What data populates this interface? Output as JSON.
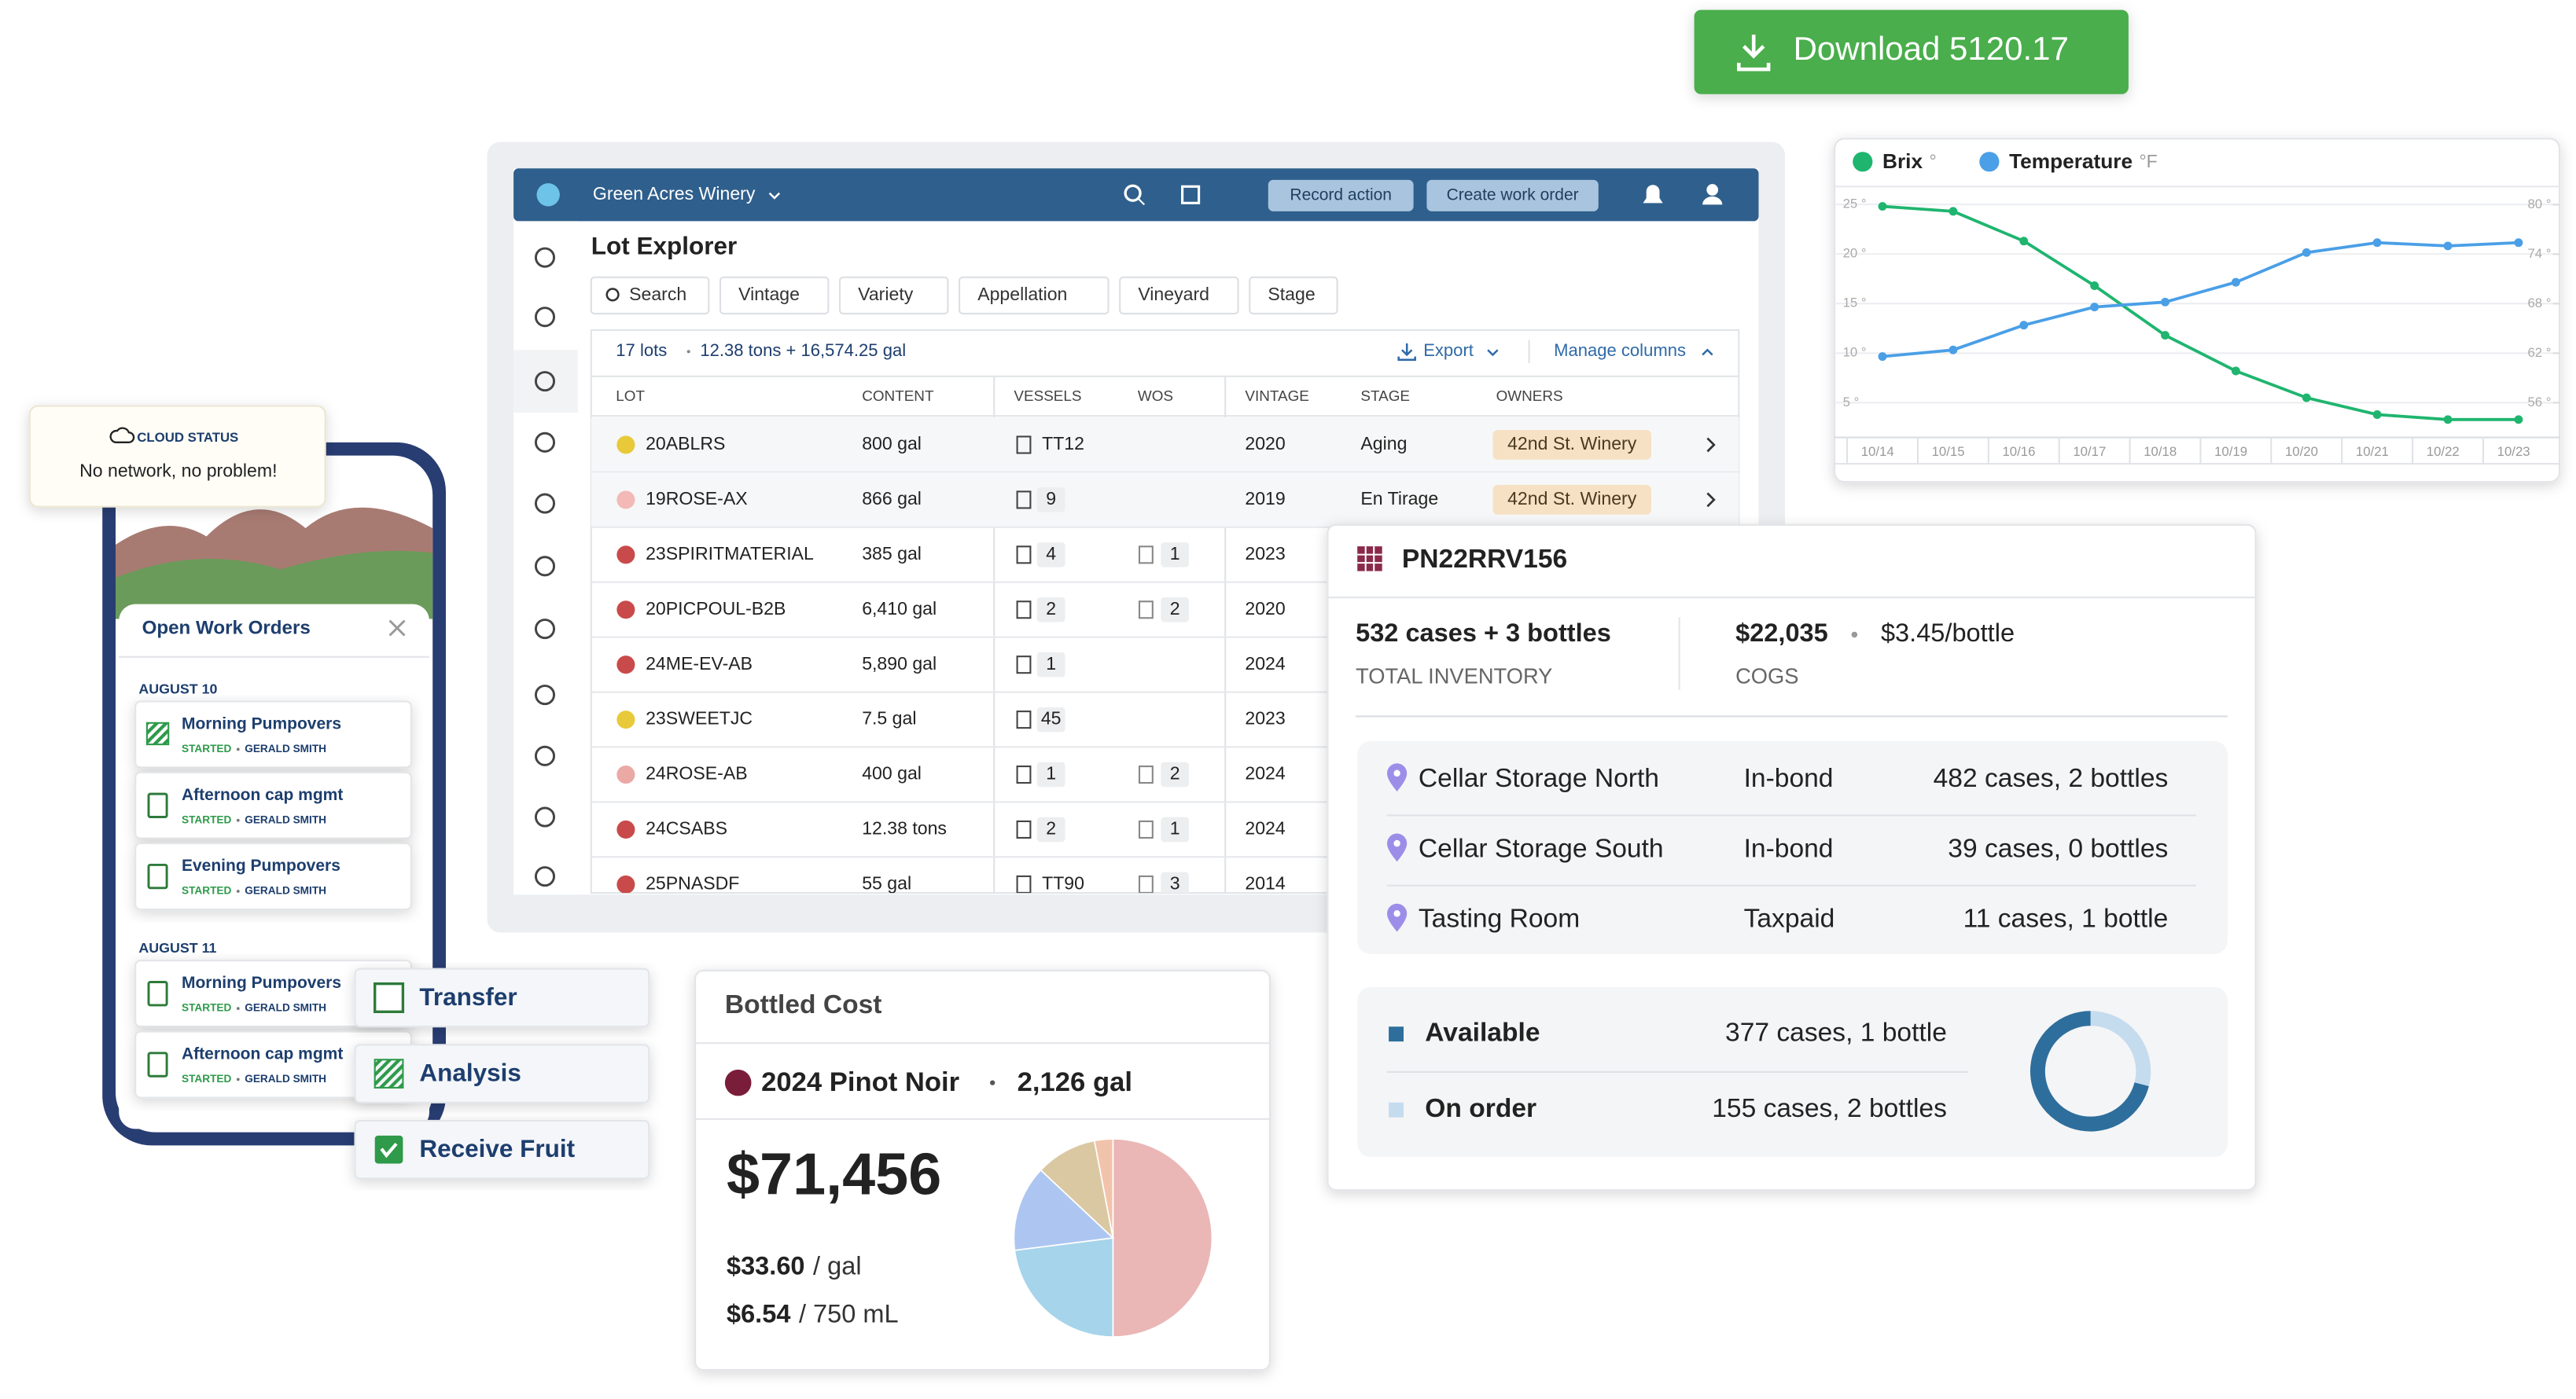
{
  "download_button": "Download 5120.17",
  "app": {
    "winery": "Green Acres Winery",
    "actions": [
      "Record action",
      "Create work order"
    ],
    "title": "Lot Explorer",
    "filters": [
      "Search",
      "Vintage",
      "Variety",
      "Appellation",
      "Vineyard",
      "Stage"
    ],
    "lot_count": "17 lots",
    "totals": "12.38 tons + 16,574.25 gal",
    "export": "Export",
    "manage_columns": "Manage columns",
    "columns": [
      "LOT",
      "CONTENT",
      "VESSELS",
      "WOS",
      "VINTAGE",
      "STAGE",
      "OWNERS"
    ],
    "rows": [
      {
        "lot": "20ABLRS",
        "color": "#e8c93a",
        "content": "800 gal",
        "vessel": "TT12",
        "wos": null,
        "vintage": "2020",
        "stage": "Aging",
        "owner": "42nd St. Winery"
      },
      {
        "lot": "19ROSE-AX",
        "color": "#f2b9b6",
        "content": "866 gal",
        "vessel": "9",
        "wos": null,
        "vintage": "2019",
        "stage": "En Tirage",
        "owner": "42nd St. Winery"
      },
      {
        "lot": "23SPIRITMATERIAL",
        "color": "#c94a4a",
        "content": "385 gal",
        "vessel": "4",
        "wos": "1",
        "vintage": "2023",
        "stage": null,
        "owner": null
      },
      {
        "lot": "20PICPOUL-B2B",
        "color": "#c94a4a",
        "content": "6,410 gal",
        "vessel": "2",
        "wos": "2",
        "vintage": "2020",
        "stage": null,
        "owner": null
      },
      {
        "lot": "24ME-EV-AB",
        "color": "#c94a4a",
        "content": "5,890 gal",
        "vessel": "1",
        "wos": null,
        "vintage": "2024",
        "stage": null,
        "owner": null
      },
      {
        "lot": "23SWEETJC",
        "color": "#e8c93a",
        "content": "7.5 gal",
        "vessel": "45",
        "wos": null,
        "vintage": "2023",
        "stage": null,
        "owner": null
      },
      {
        "lot": "24ROSE-AB",
        "color": "#eba9a6",
        "content": "400 gal",
        "vessel": "1",
        "wos": "2",
        "vintage": "2024",
        "stage": null,
        "owner": null
      },
      {
        "lot": "24CSABS",
        "color": "#c94a4a",
        "content": "12.38 tons",
        "vessel": "2",
        "wos": "1",
        "vintage": "2024",
        "stage": null,
        "owner": null
      },
      {
        "lot": "25PNASDF",
        "color": "#c94a4a",
        "content": "55 gal",
        "vessel": "TT90",
        "wos": "3",
        "vintage": "2014",
        "stage": null,
        "owner": null
      }
    ]
  },
  "inventory": {
    "lot": "PN22RRV156",
    "total": "532 cases + 3 bottles",
    "total_label": "TOTAL INVENTORY",
    "cogs": "$22,035",
    "per_bottle": "$3.45/bottle",
    "cogs_label": "COGS",
    "locations": [
      {
        "name": "Cellar Storage North",
        "tax": "In-bond",
        "qty": "482 cases, 2 bottles"
      },
      {
        "name": "Cellar Storage South",
        "tax": "In-bond",
        "qty": "39 cases, 0 bottles"
      },
      {
        "name": "Tasting Room",
        "tax": "Taxpaid",
        "qty": "11 cases, 1 bottle"
      }
    ],
    "availability": [
      "377 cases, 1 bottle",
      "155 cases, 2 bottles"
    ]
  },
  "cost": {
    "title": "Bottled Cost",
    "lot": "2024 Pinot Noir",
    "volume": "2,126 gal",
    "total": "$71,456",
    "per_gal": "$33.60",
    "per_gal_unit": "/ gal",
    "per_bottle": "$6.54",
    "per_bottle_unit": "/ 750 mL"
  },
  "mobile": {
    "cloud_title": "CLOUD STATUS",
    "cloud_text": "No network, no problem!",
    "panel_title": "Open Work Orders",
    "groups": [
      {
        "date": "AUGUST 10",
        "items": [
          {
            "title": "Morning Pumpovers",
            "status": "STARTED",
            "person": "GERALD SMITH"
          },
          {
            "title": "Afternoon cap mgmt",
            "status": "STARTED",
            "person": "GERALD SMITH"
          },
          {
            "title": "Evening Pumpovers",
            "status": "STARTED",
            "person": "GERALD SMITH"
          }
        ]
      },
      {
        "date": "AUGUST 11",
        "items": [
          {
            "title": "Morning Pumpovers",
            "status": "STARTED",
            "person": "GERALD SMITH"
          },
          {
            "title": "Afternoon cap mgmt",
            "status": "STARTED",
            "person": "GERALD SMITH"
          }
        ]
      }
    ],
    "chips": [
      "Transfer",
      "Analysis",
      "Receive Fruit"
    ]
  },
  "chart_data": [
    {
      "type": "line",
      "categories": [
        "10/14",
        "10/15",
        "10/16",
        "10/17",
        "10/18",
        "10/19",
        "10/20",
        "10/21",
        "10/22",
        "10/23"
      ],
      "series": [
        {
          "name": "Brix",
          "unit": "°",
          "color": "#1fb56f",
          "values": [
            24.8,
            24.3,
            21.3,
            16.8,
            11.8,
            8.2,
            5.5,
            3.8,
            3.3,
            3.3
          ]
        },
        {
          "name": "Temperature",
          "unit": "°F",
          "color": "#4a9fe6",
          "axis": "y2",
          "values": [
            61.6,
            62.4,
            65.4,
            67.6,
            68.2,
            70.6,
            74.2,
            75.4,
            75.0,
            75.4
          ]
        }
      ],
      "ylim": [
        1.5,
        26.8
      ],
      "yticks": [
        {
          "value": 5,
          "label": "5 °"
        },
        {
          "value": 10,
          "label": "10 °"
        },
        {
          "value": 15,
          "label": "15 °"
        },
        {
          "value": 20,
          "label": "20 °"
        },
        {
          "value": 25,
          "label": "25 °"
        }
      ],
      "y2lim": [
        51.8,
        82.2
      ],
      "y2ticks": [
        {
          "value": 56,
          "label": "56 °"
        },
        {
          "value": 62,
          "label": "62 °"
        },
        {
          "value": 68,
          "label": "68 °"
        },
        {
          "value": 74,
          "label": "74 °"
        },
        {
          "value": 80,
          "label": "80 °"
        }
      ],
      "grid": true
    },
    {
      "type": "pie",
      "values": [
        50,
        23,
        14,
        10,
        3
      ],
      "colors": [
        "#ebb6b6",
        "#a6d4ea",
        "#adc6f1",
        "#dac8a2",
        "#f2c3ab"
      ]
    },
    {
      "type": "donut",
      "categories": [
        "Available",
        "On order"
      ],
      "values": [
        71,
        29
      ],
      "colors": [
        "#2e6e9c",
        "#c5dcef"
      ]
    }
  ]
}
